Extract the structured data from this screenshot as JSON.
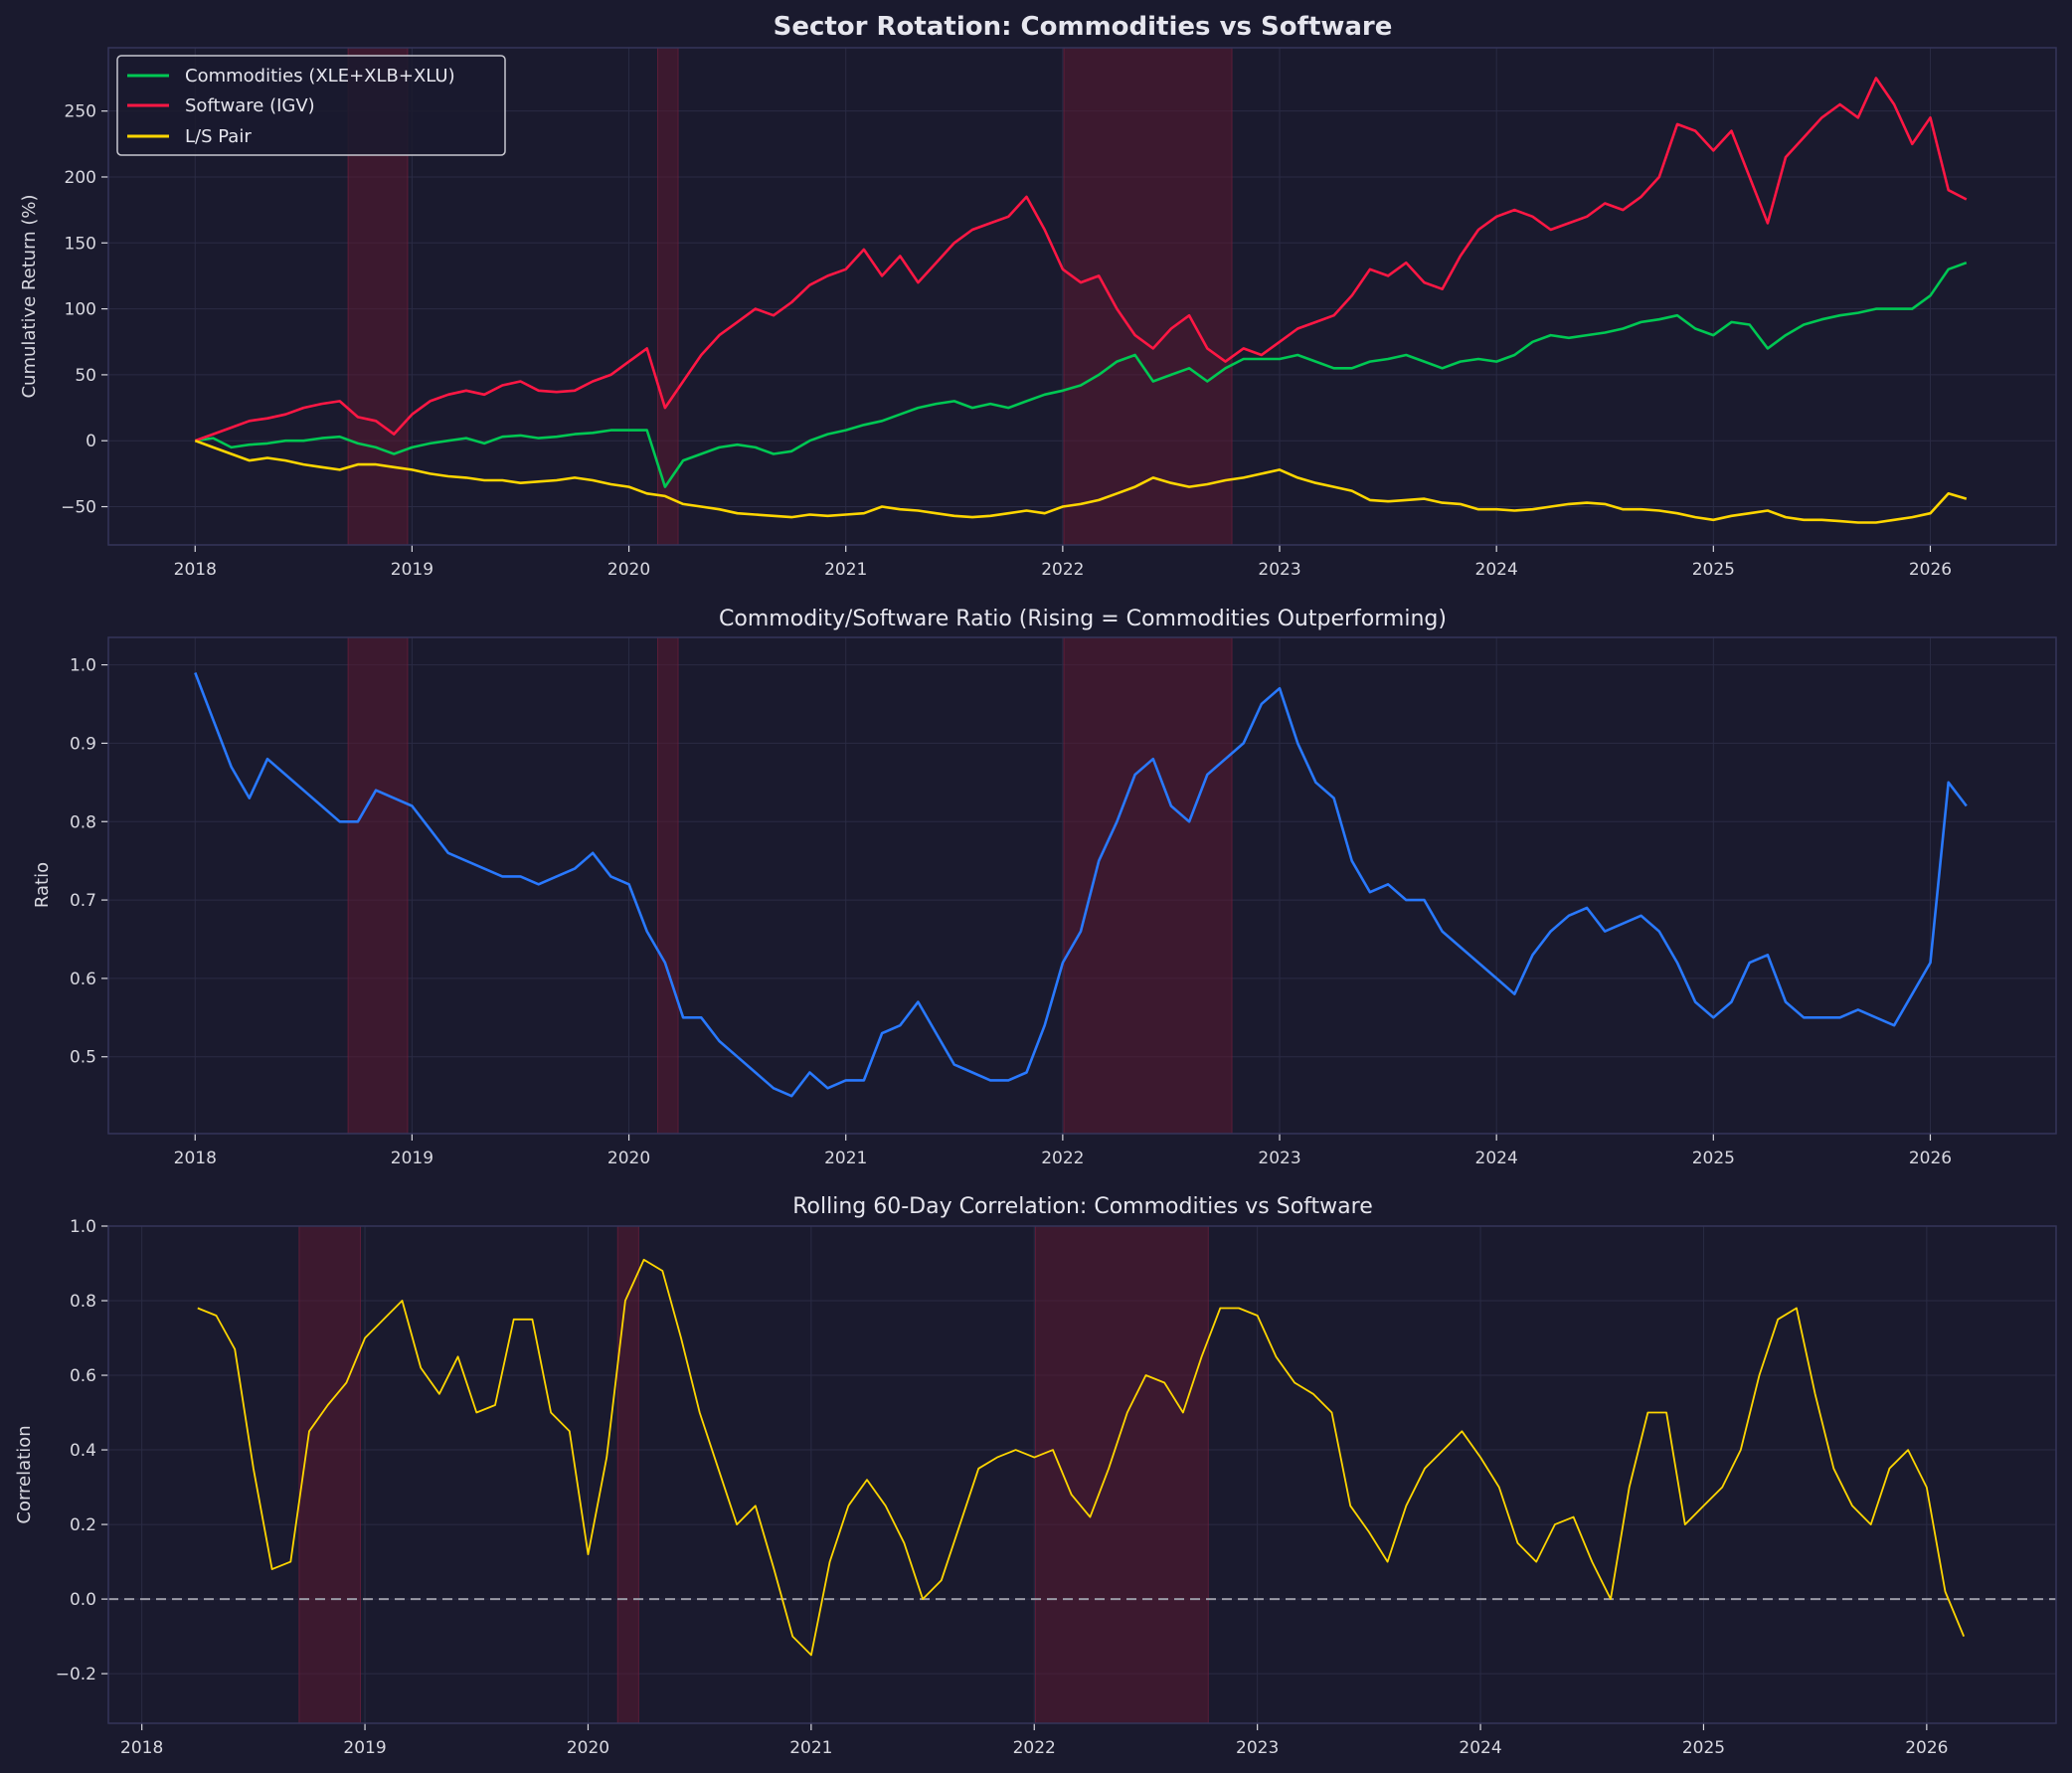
{
  "colors": {
    "background": "#1a1a2e",
    "commodities": "#00c853",
    "software": "#ff1744",
    "pair": "#ffd600",
    "ratio": "#2979ff",
    "correlation": "#ffd600",
    "shade": "#5a1a32",
    "zero_line": "#9a9aa6"
  },
  "chart_data": [
    {
      "type": "line",
      "title": "Sector Rotation: Commodities vs Software",
      "xlabel": "",
      "ylabel": "Cumulative Return (%)",
      "xlim": [
        "2017-08",
        "2026-07"
      ],
      "ylim": [
        -79,
        298
      ],
      "xticks": [
        "2018",
        "2019",
        "2020",
        "2021",
        "2022",
        "2023",
        "2024",
        "2025",
        "2026"
      ],
      "yticks": [
        "−50",
        "0",
        "50",
        "100",
        "150",
        "200",
        "250"
      ],
      "ytick_values": [
        -50,
        0,
        50,
        100,
        150,
        200,
        250
      ],
      "grid": true,
      "legend": "top-left",
      "shaded_periods": [
        [
          "2018-09-15",
          "2018-12-24"
        ],
        [
          "2020-02-19",
          "2020-03-23"
        ],
        [
          "2022-01-03",
          "2022-10-12"
        ]
      ],
      "start": "2018-01",
      "series": [
        {
          "name": "Commodities (XLE+XLB+XLU)",
          "color_key": "commodities",
          "values": [
            0,
            2,
            -5,
            -3,
            -2,
            0,
            0,
            2,
            3,
            -2,
            -5,
            -10,
            -5,
            -2,
            0,
            2,
            -2,
            3,
            4,
            2,
            3,
            5,
            6,
            8,
            8,
            8,
            -35,
            -15,
            -10,
            -5,
            -3,
            -5,
            -10,
            -8,
            0,
            5,
            8,
            12,
            15,
            20,
            25,
            28,
            30,
            25,
            28,
            25,
            30,
            35,
            38,
            42,
            50,
            60,
            65,
            45,
            50,
            55,
            45,
            55,
            62,
            62,
            62,
            65,
            60,
            55,
            55,
            60,
            62,
            65,
            60,
            55,
            60,
            62,
            60,
            65,
            75,
            80,
            78,
            80,
            82,
            85,
            90,
            92,
            95,
            85,
            80,
            90,
            88,
            70,
            80,
            88,
            92,
            95,
            97,
            100,
            100,
            100,
            110,
            130,
            135
          ]
        },
        {
          "name": "Software (IGV)",
          "color_key": "software",
          "values": [
            0,
            5,
            10,
            15,
            17,
            20,
            25,
            28,
            30,
            18,
            15,
            5,
            20,
            30,
            35,
            38,
            35,
            42,
            45,
            38,
            37,
            38,
            45,
            50,
            60,
            70,
            25,
            45,
            65,
            80,
            90,
            100,
            95,
            105,
            118,
            125,
            130,
            145,
            125,
            140,
            120,
            135,
            150,
            160,
            165,
            170,
            185,
            160,
            130,
            120,
            125,
            100,
            80,
            70,
            85,
            95,
            70,
            60,
            70,
            65,
            75,
            85,
            90,
            95,
            110,
            130,
            125,
            135,
            120,
            115,
            140,
            160,
            170,
            175,
            170,
            160,
            165,
            170,
            180,
            175,
            185,
            200,
            240,
            235,
            220,
            235,
            200,
            165,
            215,
            230,
            245,
            255,
            245,
            275,
            255,
            225,
            245,
            190,
            183
          ]
        },
        {
          "name": "L/S Pair",
          "color_key": "pair",
          "values": [
            0,
            -5,
            -10,
            -15,
            -13,
            -15,
            -18,
            -20,
            -22,
            -18,
            -18,
            -20,
            -22,
            -25,
            -27,
            -28,
            -30,
            -30,
            -32,
            -31,
            -30,
            -28,
            -30,
            -33,
            -35,
            -40,
            -42,
            -48,
            -50,
            -52,
            -55,
            -56,
            -57,
            -58,
            -56,
            -57,
            -56,
            -55,
            -50,
            -52,
            -53,
            -55,
            -57,
            -58,
            -57,
            -55,
            -53,
            -55,
            -50,
            -48,
            -45,
            -40,
            -35,
            -28,
            -32,
            -35,
            -33,
            -30,
            -28,
            -25,
            -22,
            -28,
            -32,
            -35,
            -38,
            -45,
            -46,
            -45,
            -44,
            -47,
            -48,
            -52,
            -52,
            -53,
            -52,
            -50,
            -48,
            -47,
            -48,
            -52,
            -52,
            -53,
            -55,
            -58,
            -60,
            -57,
            -55,
            -53,
            -58,
            -60,
            -60,
            -61,
            -62,
            -62,
            -60,
            -58,
            -55,
            -40,
            -44
          ]
        }
      ]
    },
    {
      "type": "line",
      "title": "Commodity/Software Ratio (Rising = Commodities Outperforming)",
      "xlabel": "",
      "ylabel": "Ratio",
      "xlim": [
        "2017-08",
        "2026-07"
      ],
      "ylim": [
        0.402,
        1.035
      ],
      "xticks": [
        "2018",
        "2019",
        "2020",
        "2021",
        "2022",
        "2023",
        "2024",
        "2025",
        "2026"
      ],
      "yticks": [
        "0.5",
        "0.6",
        "0.7",
        "0.8",
        "0.9",
        "1.0"
      ],
      "ytick_values": [
        0.5,
        0.6,
        0.7,
        0.8,
        0.9,
        1.0
      ],
      "grid": true,
      "shaded_periods": [
        [
          "2018-09-15",
          "2018-12-24"
        ],
        [
          "2020-02-19",
          "2020-03-23"
        ],
        [
          "2022-01-03",
          "2022-10-12"
        ]
      ],
      "start": "2018-01",
      "series": [
        {
          "color_key": "ratio",
          "values": [
            0.99,
            0.93,
            0.87,
            0.83,
            0.88,
            0.86,
            0.84,
            0.82,
            0.8,
            0.8,
            0.84,
            0.83,
            0.82,
            0.79,
            0.76,
            0.75,
            0.74,
            0.73,
            0.73,
            0.72,
            0.73,
            0.74,
            0.76,
            0.73,
            0.72,
            0.66,
            0.62,
            0.55,
            0.55,
            0.52,
            0.5,
            0.48,
            0.46,
            0.45,
            0.48,
            0.46,
            0.47,
            0.47,
            0.53,
            0.54,
            0.57,
            0.53,
            0.49,
            0.48,
            0.47,
            0.47,
            0.48,
            0.54,
            0.62,
            0.66,
            0.75,
            0.8,
            0.86,
            0.88,
            0.82,
            0.8,
            0.86,
            0.88,
            0.9,
            0.95,
            0.97,
            0.9,
            0.85,
            0.83,
            0.75,
            0.71,
            0.72,
            0.7,
            0.7,
            0.66,
            0.64,
            0.62,
            0.6,
            0.58,
            0.63,
            0.66,
            0.68,
            0.69,
            0.66,
            0.67,
            0.68,
            0.66,
            0.62,
            0.57,
            0.55,
            0.57,
            0.62,
            0.63,
            0.57,
            0.55,
            0.55,
            0.55,
            0.56,
            0.55,
            0.54,
            0.58,
            0.62,
            0.85,
            0.82
          ]
        }
      ]
    },
    {
      "type": "line",
      "title": "Rolling 60-Day Correlation: Commodities vs Software",
      "xlabel": "",
      "ylabel": "Correlation",
      "xlim": [
        "2017-11",
        "2026-07"
      ],
      "ylim": [
        -0.333,
        1.0
      ],
      "xticks": [
        "2018",
        "2019",
        "2020",
        "2021",
        "2022",
        "2023",
        "2024",
        "2025",
        "2026"
      ],
      "yticks": [
        "−0.2",
        "0.0",
        "0.2",
        "0.4",
        "0.6",
        "0.8",
        "1.0"
      ],
      "ytick_values": [
        -0.2,
        0,
        0.2,
        0.4,
        0.6,
        0.8,
        1.0
      ],
      "grid": true,
      "reference_line": 0,
      "shaded_periods": [
        [
          "2018-09-15",
          "2018-12-24"
        ],
        [
          "2020-02-19",
          "2020-03-23"
        ],
        [
          "2022-01-03",
          "2022-10-12"
        ]
      ],
      "start": "2018-04",
      "series": [
        {
          "color_key": "correlation",
          "values": [
            0.78,
            0.76,
            0.67,
            0.35,
            0.08,
            0.1,
            0.45,
            0.52,
            0.58,
            0.7,
            0.75,
            0.8,
            0.62,
            0.55,
            0.65,
            0.5,
            0.52,
            0.75,
            0.75,
            0.5,
            0.45,
            0.12,
            0.38,
            0.8,
            0.91,
            0.88,
            0.7,
            0.5,
            0.35,
            0.2,
            0.25,
            0.08,
            -0.1,
            -0.15,
            0.1,
            0.25,
            0.32,
            0.25,
            0.15,
            0.0,
            0.05,
            0.2,
            0.35,
            0.38,
            0.4,
            0.38,
            0.4,
            0.28,
            0.22,
            0.35,
            0.5,
            0.6,
            0.58,
            0.5,
            0.65,
            0.78,
            0.78,
            0.76,
            0.65,
            0.58,
            0.55,
            0.5,
            0.25,
            0.18,
            0.1,
            0.25,
            0.35,
            0.4,
            0.45,
            0.38,
            0.3,
            0.15,
            0.1,
            0.2,
            0.22,
            0.1,
            0.0,
            0.3,
            0.5,
            0.5,
            0.2,
            0.25,
            0.3,
            0.4,
            0.6,
            0.75,
            0.78,
            0.55,
            0.35,
            0.25,
            0.2,
            0.35,
            0.4,
            0.3,
            0.02,
            -0.1
          ]
        }
      ]
    }
  ]
}
